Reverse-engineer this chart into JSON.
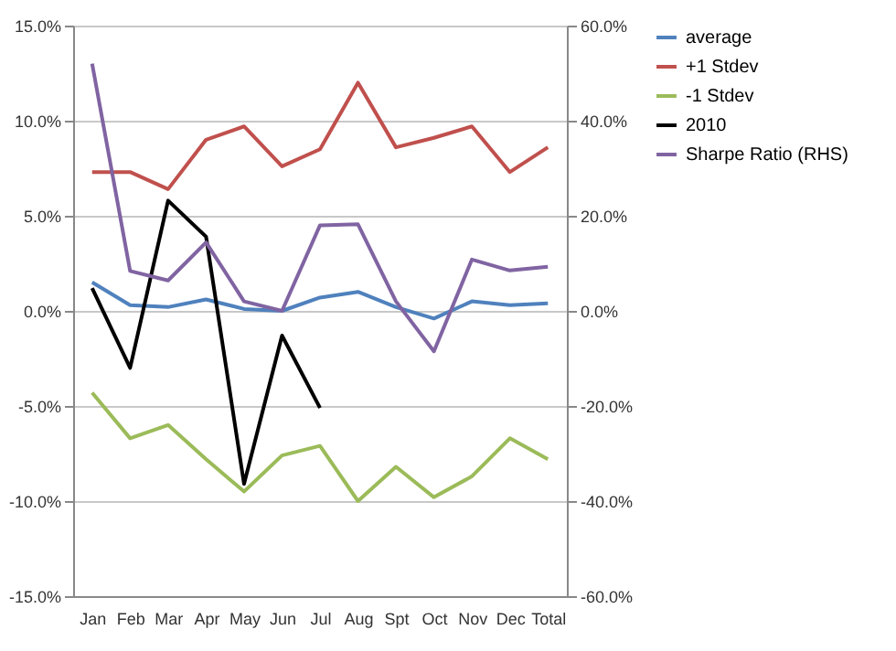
{
  "chart_data": {
    "type": "line",
    "categories": [
      "Jan",
      "Feb",
      "Mar",
      "Apr",
      "May",
      "Jun",
      "Jul",
      "Aug",
      "Spt",
      "Oct",
      "Nov",
      "Dec",
      "Total"
    ],
    "series": [
      {
        "name": "average",
        "color": "#4f81bd",
        "values": [
          1.5,
          0.3,
          0.2,
          0.6,
          0.1,
          0.0,
          0.7,
          1.0,
          0.2,
          -0.4,
          0.5,
          0.3,
          0.4
        ]
      },
      {
        "name": "+1 Stdev",
        "color": "#c0504d",
        "values": [
          7.3,
          7.3,
          6.4,
          9.0,
          9.7,
          7.6,
          8.5,
          12.0,
          8.6,
          9.1,
          9.7,
          7.3,
          8.6
        ]
      },
      {
        "name": "-1 Stdev",
        "color": "#9bbb59",
        "values": [
          -4.3,
          -6.7,
          -6.0,
          -7.8,
          -9.5,
          -7.6,
          -7.1,
          -10.0,
          -8.2,
          -9.8,
          -8.7,
          -6.7,
          -7.8
        ]
      },
      {
        "name": "2010",
        "color": "#000000",
        "values": [
          1.2,
          -3.0,
          5.8,
          3.9,
          -9.1,
          -1.3,
          -5.1,
          null,
          null,
          null,
          null,
          null,
          null
        ]
      },
      {
        "name": "Sharpe Ratio (RHS)",
        "color": "#8064a2",
        "axis": "y2",
        "values": [
          52,
          8.4,
          6.4,
          14.4,
          2,
          0,
          18,
          18.2,
          2,
          -8.5,
          10.8,
          8.5,
          9.3
        ]
      }
    ],
    "ylim": [
      -15,
      15
    ],
    "yticks": [
      {
        "value": -15,
        "label": "-15.0%"
      },
      {
        "value": -10,
        "label": "-10.0%"
      },
      {
        "value": -5,
        "label": "-5.0%"
      },
      {
        "value": 0,
        "label": "0.0%"
      },
      {
        "value": 5,
        "label": "5.0%"
      },
      {
        "value": 10,
        "label": "10.0%"
      },
      {
        "value": 15,
        "label": "15.0%"
      }
    ],
    "y2lim": [
      -60,
      60
    ],
    "y2ticks": [
      {
        "value": -60,
        "label": "-60.0%"
      },
      {
        "value": -40,
        "label": "-40.0%"
      },
      {
        "value": -20,
        "label": "-20.0%"
      },
      {
        "value": 0,
        "label": "0.0%"
      },
      {
        "value": 20,
        "label": "20.0%"
      },
      {
        "value": 40,
        "label": "40.0%"
      },
      {
        "value": 60,
        "label": "60.0%"
      }
    ],
    "grid": "y",
    "legend": "right"
  }
}
